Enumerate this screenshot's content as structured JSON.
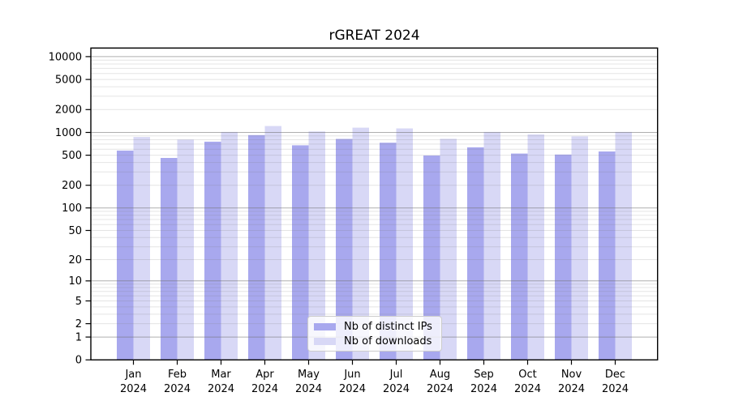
{
  "chart_data": {
    "type": "bar",
    "title": "rGREAT 2024",
    "categories": [
      "Jan 2024",
      "Feb 2024",
      "Mar 2024",
      "Apr 2024",
      "May 2024",
      "Jun 2024",
      "Jul 2024",
      "Aug 2024",
      "Sep 2024",
      "Oct 2024",
      "Nov 2024",
      "Dec 2024"
    ],
    "series": [
      {
        "name": "Nb of distinct IPs",
        "color": "#a8a8ee",
        "values": [
          575,
          460,
          755,
          920,
          675,
          820,
          730,
          495,
          635,
          525,
          510,
          560
        ]
      },
      {
        "name": "Nb of downloads",
        "color": "#d8d8f6",
        "values": [
          870,
          805,
          1015,
          1215,
          1030,
          1155,
          1130,
          825,
          1015,
          940,
          885,
          1015
        ]
      }
    ],
    "y_axis": {
      "scale": "log1p",
      "ticks": [
        0,
        1,
        2,
        5,
        10,
        20,
        50,
        100,
        200,
        500,
        1000,
        2000,
        5000,
        10000
      ],
      "top_value": 13000,
      "grid": "on",
      "major_grid_color": "#bababa",
      "minor_grid_color": "#e6e6e6"
    },
    "x_axis": {
      "tick_style": "two-line month/year"
    },
    "legend": {
      "position": "bottom-center"
    }
  }
}
